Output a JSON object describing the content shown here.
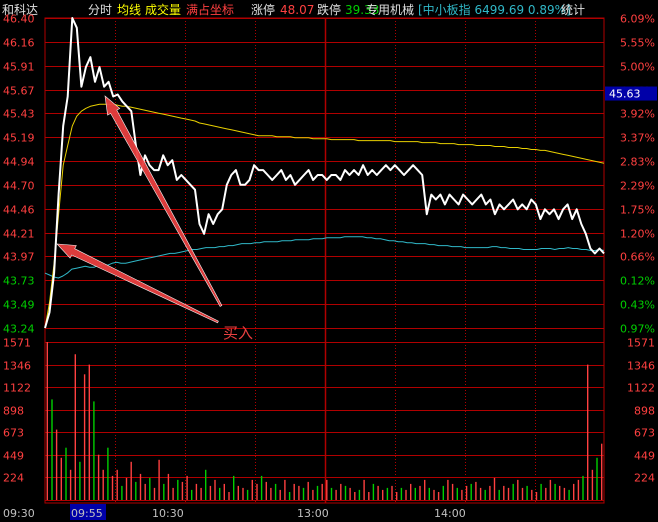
{
  "header": {
    "stock_name": "和科达",
    "tab_minute": "分时",
    "tab_avg_line": "均线",
    "tab_volume": "成交量",
    "tab_full_scale": "满占坐标",
    "limit_up_label": "涨停",
    "limit_up_value": "48.07",
    "limit_down_label": "跌停",
    "limit_down_value": "39.33",
    "sector_name": "专用机械",
    "index_text": "[中小板指 6499.69 0.89%]",
    "stats_tab": "统计"
  },
  "price_axis_left": [
    "46.40",
    "46.16",
    "45.91",
    "45.67",
    "45.43",
    "45.19",
    "44.94",
    "44.70",
    "44.46",
    "44.21",
    "43.97",
    "43.73",
    "43.49",
    "43.24"
  ],
  "pct_axis_right": [
    "6.09%",
    "5.55%",
    "5.00%",
    "4.46%",
    "3.92%",
    "3.37%",
    "2.83%",
    "2.29%",
    "1.75%",
    "1.20%",
    "0.66%",
    "0.12%",
    "0.43%",
    "0.97%"
  ],
  "current_price_tag": "45.63",
  "volume_axis": [
    "1571",
    "1346",
    "1122",
    "898",
    "673",
    "449",
    "224"
  ],
  "time_axis": [
    "09:30",
    "09:55",
    "10:30",
    "13:00",
    "14:00"
  ],
  "annotation_text": "买入",
  "colors": {
    "grid_red": "#b00000",
    "price_line": "#ffffff",
    "avg_line": "#e8d000",
    "index_line": "#30b8c8",
    "up_red": "#ff4040",
    "down_green": "#00d000",
    "arrow_red": "#e84040",
    "highlight_blue": "#0000a8"
  },
  "chart_data": {
    "type": "line",
    "series": [
      {
        "values": [
          43.24,
          43.4,
          43.8,
          44.6,
          45.3,
          45.6,
          46.4,
          46.3,
          45.7,
          45.9,
          46.0,
          45.75,
          45.9,
          45.7,
          45.75,
          45.6,
          45.62,
          45.55,
          45.5,
          45.45,
          45.1,
          44.8,
          45.0,
          44.9,
          44.85,
          44.85,
          45.0,
          44.9,
          44.95,
          44.75,
          44.8,
          44.75,
          44.7,
          44.65,
          44.3,
          44.2,
          44.4,
          44.3,
          44.4,
          44.45,
          44.7,
          44.8,
          44.85,
          44.7,
          44.7,
          44.75,
          44.9,
          44.85,
          44.85,
          44.8,
          44.75,
          44.8,
          44.85,
          44.75,
          44.8,
          44.7,
          44.75,
          44.8,
          44.85,
          44.75,
          44.8,
          44.8,
          44.75,
          44.8,
          44.8,
          44.75,
          44.85,
          44.8,
          44.85,
          44.8,
          44.9,
          44.8,
          44.85,
          44.8,
          44.85,
          44.9,
          44.85,
          44.9,
          44.85,
          44.8,
          44.85,
          44.9,
          44.85,
          44.8,
          44.4,
          44.6,
          44.55,
          44.6,
          44.5,
          44.6,
          44.55,
          44.5,
          44.6,
          44.55,
          44.5,
          44.55,
          44.6,
          44.5,
          44.55,
          44.4,
          44.5,
          44.45,
          44.5,
          44.55,
          44.45,
          44.5,
          44.45,
          44.55,
          44.5,
          44.35,
          44.45,
          44.4,
          44.45,
          44.35,
          44.45,
          44.5,
          44.35,
          44.45,
          44.3,
          44.2,
          44.05,
          44.0,
          44.05,
          44.0
        ]
      },
      {
        "values": [
          43.24,
          43.5,
          43.9,
          44.4,
          44.9,
          45.1,
          45.3,
          45.4,
          45.45,
          45.48,
          45.5,
          45.51,
          45.52,
          45.52,
          45.52,
          45.52,
          45.51,
          45.5,
          45.5,
          45.49,
          45.48,
          45.47,
          45.46,
          45.45,
          45.44,
          45.43,
          45.42,
          45.41,
          45.4,
          45.39,
          45.38,
          45.37,
          45.36,
          45.35,
          45.33,
          45.32,
          45.31,
          45.3,
          45.29,
          45.28,
          45.27,
          45.26,
          45.25,
          45.24,
          45.23,
          45.22,
          45.21,
          45.2,
          45.2,
          45.2,
          45.2,
          45.19,
          45.19,
          45.19,
          45.19,
          45.18,
          45.18,
          45.18,
          45.18,
          45.17,
          45.17,
          45.17,
          45.17,
          45.16,
          45.16,
          45.16,
          45.16,
          45.16,
          45.16,
          45.15,
          45.15,
          45.15,
          45.15,
          45.15,
          45.15,
          45.15,
          45.15,
          45.14,
          45.14,
          45.14,
          45.14,
          45.14,
          45.14,
          45.13,
          45.13,
          45.13,
          45.13,
          45.12,
          45.12,
          45.12,
          45.12,
          45.11,
          45.11,
          45.11,
          45.11,
          45.1,
          45.1,
          45.1,
          45.1,
          45.09,
          45.09,
          45.09,
          45.08,
          45.08,
          45.08,
          45.07,
          45.07,
          45.06,
          45.06,
          45.05,
          45.05,
          45.04,
          45.03,
          45.02,
          45.01,
          45.0,
          44.99,
          44.98,
          44.97,
          44.96,
          44.95,
          44.94,
          44.93,
          44.92
        ]
      },
      {
        "values": [
          43.8,
          43.78,
          43.76,
          43.75,
          43.77,
          43.8,
          43.84,
          43.85,
          43.86,
          43.87,
          43.86,
          43.86,
          43.88,
          43.89,
          43.88,
          43.9,
          43.91,
          43.9,
          43.9,
          43.91,
          43.92,
          43.93,
          43.94,
          43.95,
          43.96,
          43.97,
          43.98,
          43.99,
          44.0,
          44.0,
          44.01,
          44.02,
          44.03,
          44.04,
          44.04,
          44.05,
          44.06,
          44.06,
          44.06,
          44.07,
          44.07,
          44.08,
          44.08,
          44.09,
          44.1,
          44.1,
          44.1,
          44.11,
          44.11,
          44.12,
          44.12,
          44.12,
          44.12,
          44.13,
          44.13,
          44.13,
          44.14,
          44.14,
          44.14,
          44.14,
          44.15,
          44.15,
          44.15,
          44.16,
          44.16,
          44.16,
          44.16,
          44.17,
          44.17,
          44.17,
          44.17,
          44.17,
          44.16,
          44.16,
          44.15,
          44.15,
          44.14,
          44.13,
          44.13,
          44.12,
          44.12,
          44.11,
          44.11,
          44.1,
          44.1,
          44.1,
          44.09,
          44.09,
          44.08,
          44.08,
          44.08,
          44.07,
          44.07,
          44.07,
          44.06,
          44.06,
          44.06,
          44.06,
          44.06,
          44.06,
          44.07,
          44.07,
          44.06,
          44.06,
          44.05,
          44.05,
          44.05,
          44.04,
          44.04,
          44.04,
          44.04,
          44.05,
          44.05,
          44.05,
          44.04,
          44.05,
          44.05,
          44.06,
          44.05,
          44.05,
          44.04,
          44.04,
          44.03,
          44.03,
          44.04,
          44.03
        ]
      }
    ],
    "volume": [
      1571,
      1000,
      700,
      420,
      520,
      300,
      1450,
      380,
      1250,
      1346,
      980,
      450,
      300,
      520,
      240,
      300,
      140,
      220,
      380,
      180,
      260,
      160,
      220,
      120,
      400,
      160,
      260,
      120,
      200,
      180,
      240,
      100,
      160,
      120,
      300,
      140,
      200,
      120,
      160,
      80,
      240,
      140,
      120,
      100,
      200,
      160,
      240,
      180,
      120,
      160,
      100,
      200,
      80,
      160,
      140,
      120,
      180,
      100,
      140,
      160,
      200,
      120,
      100,
      160,
      140,
      120,
      80,
      100,
      200,
      80,
      160,
      140,
      100,
      120,
      140,
      80,
      120,
      100,
      160,
      120,
      140,
      200,
      120,
      100,
      80,
      140,
      200,
      160,
      120,
      100,
      140,
      160,
      180,
      120,
      100,
      140,
      220,
      100,
      140,
      120,
      160,
      200,
      120,
      140,
      100,
      80,
      160,
      120,
      200,
      160,
      140,
      120,
      100,
      160,
      200,
      240,
      1346,
      300,
      420,
      560
    ],
    "ylim_price": [
      43.24,
      46.4
    ],
    "ylim_volume": [
      0,
      1571
    ]
  }
}
